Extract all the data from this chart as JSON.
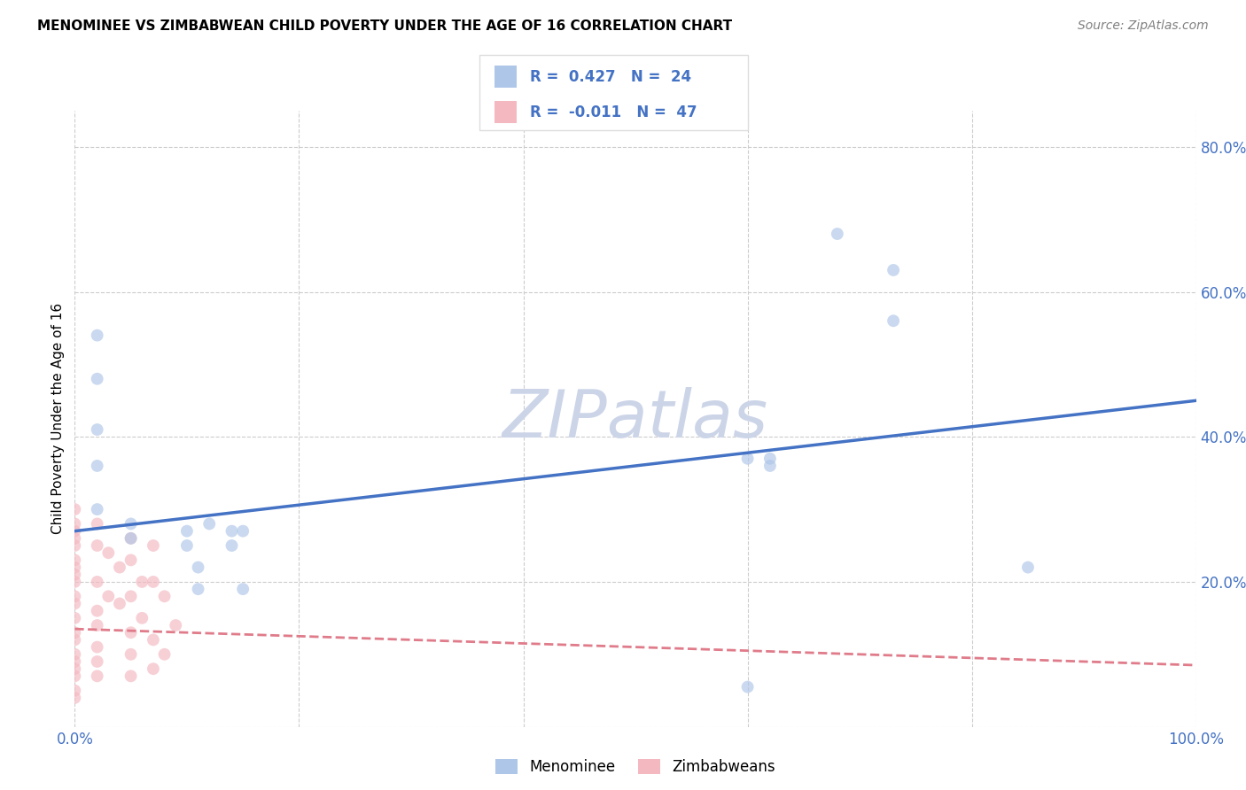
{
  "title": "MENOMINEE VS ZIMBABWEAN CHILD POVERTY UNDER THE AGE OF 16 CORRELATION CHART",
  "source": "Source: ZipAtlas.com",
  "ylabel": "Child Poverty Under the Age of 16",
  "xlim": [
    0.0,
    1.0
  ],
  "ylim": [
    0.0,
    0.85
  ],
  "xticks": [
    0.0,
    0.2,
    0.4,
    0.6,
    0.8,
    1.0
  ],
  "yticks": [
    0.0,
    0.2,
    0.4,
    0.6,
    0.8
  ],
  "xtick_labels": [
    "0.0%",
    "",
    "",
    "",
    "",
    "100.0%"
  ],
  "ytick_labels": [
    "",
    "20.0%",
    "40.0%",
    "60.0%",
    "80.0%"
  ],
  "background_color": "#ffffff",
  "grid_color": "#cccccc",
  "menominee_color": "#aec6e8",
  "zimbabwean_color": "#f4b8c1",
  "menominee_line_color": "#4472c4",
  "zimbabwean_line_color": "#e07b8a",
  "tick_color": "#4472c4",
  "legend_r_men": "0.427",
  "legend_n_men": "24",
  "legend_r_zim": "-0.011",
  "legend_n_zim": "47",
  "menominee_x": [
    0.02,
    0.02,
    0.02,
    0.02,
    0.02,
    0.05,
    0.05,
    0.1,
    0.1,
    0.11,
    0.11,
    0.12,
    0.14,
    0.14,
    0.15,
    0.15,
    0.6,
    0.62,
    0.62,
    0.68,
    0.73,
    0.73,
    0.85,
    0.6
  ],
  "menominee_y": [
    0.54,
    0.48,
    0.41,
    0.36,
    0.3,
    0.28,
    0.26,
    0.27,
    0.25,
    0.22,
    0.19,
    0.28,
    0.27,
    0.25,
    0.27,
    0.19,
    0.37,
    0.37,
    0.36,
    0.68,
    0.63,
    0.56,
    0.22,
    0.055
  ],
  "zimbabwean_x": [
    0.0,
    0.0,
    0.0,
    0.0,
    0.0,
    0.0,
    0.0,
    0.0,
    0.0,
    0.0,
    0.0,
    0.0,
    0.0,
    0.0,
    0.0,
    0.0,
    0.0,
    0.0,
    0.0,
    0.0,
    0.02,
    0.02,
    0.02,
    0.02,
    0.02,
    0.02,
    0.02,
    0.02,
    0.03,
    0.03,
    0.04,
    0.04,
    0.05,
    0.05,
    0.05,
    0.05,
    0.05,
    0.05,
    0.06,
    0.06,
    0.07,
    0.07,
    0.07,
    0.07,
    0.08,
    0.08,
    0.09
  ],
  "zimbabwean_y": [
    0.3,
    0.28,
    0.27,
    0.26,
    0.25,
    0.23,
    0.22,
    0.21,
    0.2,
    0.18,
    0.17,
    0.15,
    0.13,
    0.12,
    0.1,
    0.09,
    0.08,
    0.07,
    0.05,
    0.04,
    0.28,
    0.25,
    0.2,
    0.16,
    0.14,
    0.11,
    0.09,
    0.07,
    0.24,
    0.18,
    0.22,
    0.17,
    0.26,
    0.23,
    0.18,
    0.13,
    0.1,
    0.07,
    0.2,
    0.15,
    0.25,
    0.2,
    0.12,
    0.08,
    0.18,
    0.1,
    0.14
  ],
  "menominee_trendline_x": [
    0.0,
    1.0
  ],
  "menominee_trendline_y": [
    0.27,
    0.45
  ],
  "zimbabwean_trendline_x": [
    0.0,
    1.0
  ],
  "zimbabwean_trendline_y": [
    0.135,
    0.085
  ],
  "marker_size": 100,
  "marker_alpha": 0.65,
  "watermark": "ZIPatlas",
  "watermark_color": "#ccd5e8"
}
